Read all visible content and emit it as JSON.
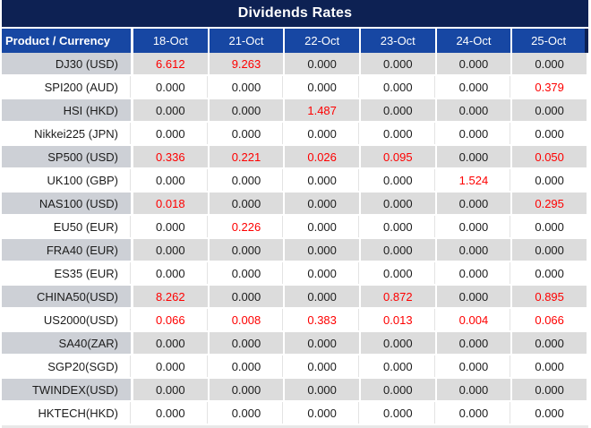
{
  "title": "Dividends Rates",
  "columns": {
    "product_header": "Product / Currency",
    "dates": [
      "18-Oct",
      "21-Oct",
      "22-Oct",
      "23-Oct",
      "24-Oct",
      "25-Oct"
    ]
  },
  "rows": [
    {
      "product": "DJ30 (USD)",
      "values": [
        "6.612",
        "9.263",
        "0.000",
        "0.000",
        "0.000",
        "0.000"
      ]
    },
    {
      "product": "SPI200 (AUD)",
      "values": [
        "0.000",
        "0.000",
        "0.000",
        "0.000",
        "0.000",
        "0.379"
      ]
    },
    {
      "product": "HSI (HKD)",
      "values": [
        "0.000",
        "0.000",
        "1.487",
        "0.000",
        "0.000",
        "0.000"
      ]
    },
    {
      "product": "Nikkei225 (JPN)",
      "values": [
        "0.000",
        "0.000",
        "0.000",
        "0.000",
        "0.000",
        "0.000"
      ]
    },
    {
      "product": "SP500 (USD)",
      "values": [
        "0.336",
        "0.221",
        "0.026",
        "0.095",
        "0.000",
        "0.050"
      ]
    },
    {
      "product": "UK100 (GBP)",
      "values": [
        "0.000",
        "0.000",
        "0.000",
        "0.000",
        "1.524",
        "0.000"
      ]
    },
    {
      "product": "NAS100 (USD)",
      "values": [
        "0.018",
        "0.000",
        "0.000",
        "0.000",
        "0.000",
        "0.295"
      ]
    },
    {
      "product": "EU50 (EUR)",
      "values": [
        "0.000",
        "0.226",
        "0.000",
        "0.000",
        "0.000",
        "0.000"
      ]
    },
    {
      "product": "FRA40 (EUR)",
      "values": [
        "0.000",
        "0.000",
        "0.000",
        "0.000",
        "0.000",
        "0.000"
      ]
    },
    {
      "product": "ES35 (EUR)",
      "values": [
        "0.000",
        "0.000",
        "0.000",
        "0.000",
        "0.000",
        "0.000"
      ]
    },
    {
      "product": "CHINA50(USD)",
      "values": [
        "8.262",
        "0.000",
        "0.000",
        "0.872",
        "0.000",
        "0.895"
      ]
    },
    {
      "product": "US2000(USD)",
      "values": [
        "0.066",
        "0.008",
        "0.383",
        "0.013",
        "0.004",
        "0.066"
      ]
    },
    {
      "product": "SA40(ZAR)",
      "values": [
        "0.000",
        "0.000",
        "0.000",
        "0.000",
        "0.000",
        "0.000"
      ]
    },
    {
      "product": "SGP20(SGD)",
      "values": [
        "0.000",
        "0.000",
        "0.000",
        "0.000",
        "0.000",
        "0.000"
      ]
    },
    {
      "product": "TWINDEX(USD)",
      "values": [
        "0.000",
        "0.000",
        "0.000",
        "0.000",
        "0.000",
        "0.000"
      ]
    },
    {
      "product": "HKTECH(HKD)",
      "values": [
        "0.000",
        "0.000",
        "0.000",
        "0.000",
        "0.000",
        "0.000"
      ]
    }
  ],
  "colors": {
    "title_bg": "#0D2153",
    "header_bg": "#1747A3",
    "header_text": "#FFFFFF",
    "row_stripe_label": "#CDD0D6",
    "row_stripe_cell": "#DCDCDC",
    "value_positive": "#FE0000",
    "value_zero": "#1C1C1C"
  }
}
